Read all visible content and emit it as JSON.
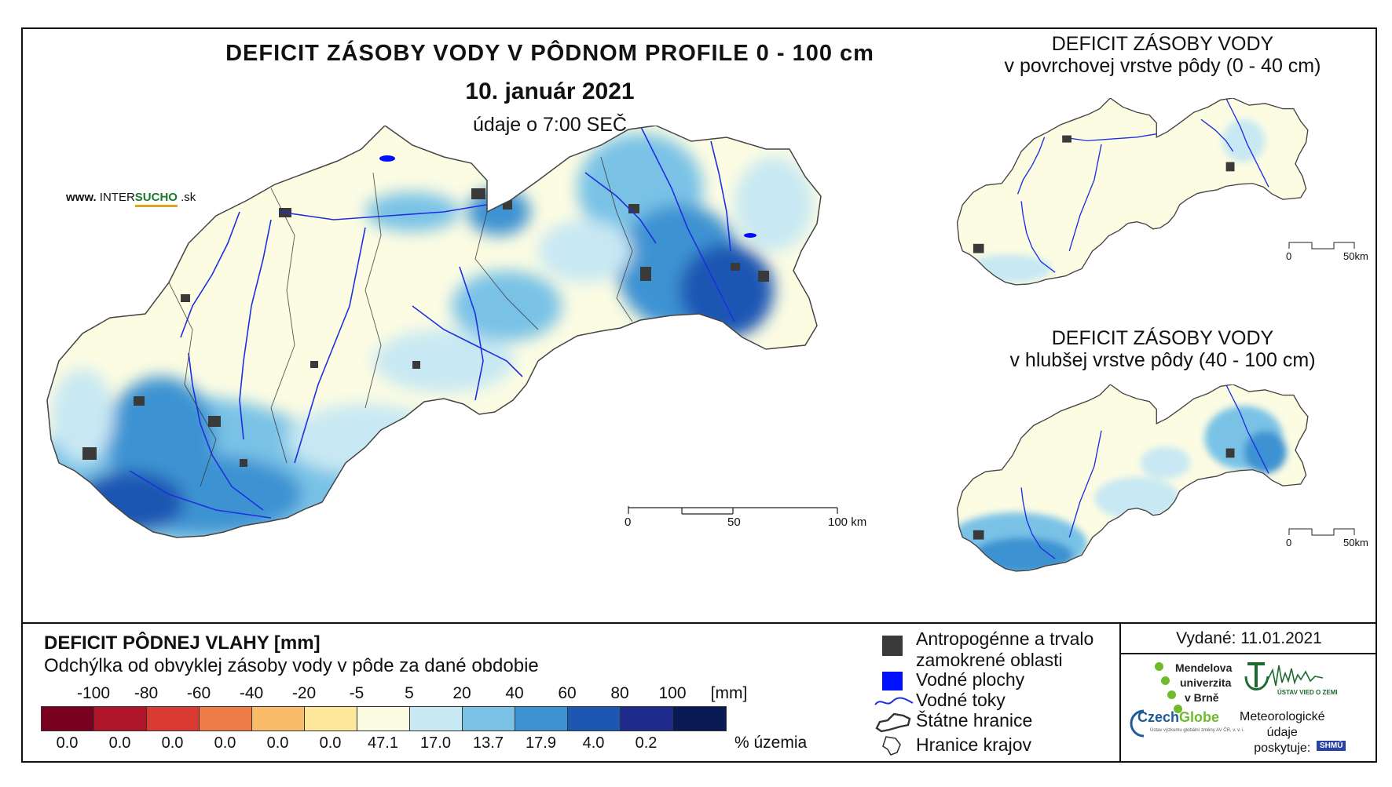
{
  "header": {
    "title": "DEFICIT ZÁSOBY VODY V PÔDNOM PROFILE 0 - 100 cm",
    "date": "10. január 2021",
    "time": "údaje o 7:00 SEČ"
  },
  "website": {
    "prefix": "www.",
    "brand": "INTER",
    "accent": "SUCHO",
    "suffix": ".sk"
  },
  "side_maps": {
    "top": {
      "line1": "DEFICIT ZÁSOBY VODY",
      "line2": "v povrchovej vrstve pôdy (0 - 40 cm)"
    },
    "bottom": {
      "line1": "DEFICIT ZÁSOBY VODY",
      "line2": "v hlubšej vrstve pôdy (40 - 100 cm)"
    }
  },
  "scalebars": {
    "main": {
      "labels": [
        "0",
        "50",
        "100 km"
      ]
    },
    "small_top": {
      "labels": [
        "0",
        "50km"
      ]
    },
    "small_bottom": {
      "labels": [
        "0",
        "50km"
      ]
    }
  },
  "legend": {
    "title": "DEFICIT PÔDNEJ VLAHY [mm]",
    "subtitle": "Odchýlka od obvyklej zásoby vody v pôde za dané obdobie",
    "breaks": [
      "-100",
      "-80",
      "-60",
      "-40",
      "-20",
      "-5",
      "5",
      "20",
      "40",
      "60",
      "80",
      "100",
      "[mm]"
    ],
    "colors": [
      "#7a0020",
      "#b0152a",
      "#d93a32",
      "#f07c4a",
      "#f9bd6a",
      "#fde79a",
      "#fcfce3",
      "#c8e8f3",
      "#79c2e6",
      "#3d93d2",
      "#1e57b3",
      "#1e2a8c",
      "#0a1a55"
    ],
    "percentages": [
      "0.0",
      "0.0",
      "0.0",
      "0.0",
      "0.0",
      "0.0",
      "47.1",
      "17.0",
      "13.7",
      "17.9",
      "4.0",
      "0.2",
      ""
    ],
    "percent_unit": "% územia"
  },
  "symbols": {
    "urban": "Antropogénne a trvalo zamokrené oblasti",
    "urban_line1": "Antropogénne a trvalo",
    "urban_line2": "zamokrené oblasti",
    "water_bodies": "Vodné plochy",
    "rivers": "Vodné toky",
    "state_border": "Štátne hranice",
    "region_border": "Hranice krajov"
  },
  "issued": "Vydané: 11.01.2021",
  "logos": {
    "mendel_line1": "Mendelova",
    "mendel_line2": "univerzita",
    "mendel_line3": "v Brně",
    "czechglobe_a": "Czech",
    "czechglobe_b": "Globe",
    "czechglobe_sub": "Ústav výzkumu globální změny AV ČR, v. v. i.",
    "uvz": "ÚSTAV VIED O ZEMI",
    "meteo_line1": "Meteorologické",
    "meteo_line2": "údaje",
    "meteo_line3": "poskytuje:",
    "shmu": "SHMÚ"
  }
}
